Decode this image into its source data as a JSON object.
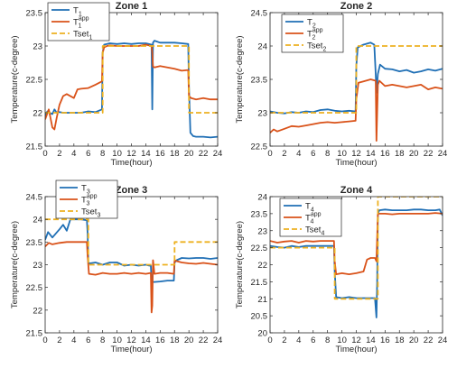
{
  "colors": {
    "T": "#1f6fb5",
    "Tapp": "#d95219",
    "Tset": "#edb120",
    "axis": "#262626",
    "background": "#ffffff"
  },
  "chart_data": [
    {
      "type": "line",
      "title": "Zone 1",
      "xlabel": "Time(hour)",
      "ylabel": "Temperature(c-degree)",
      "xlim": [
        0,
        24
      ],
      "ylim": [
        21.5,
        23.5
      ],
      "xticks": [
        "0",
        "2",
        "4",
        "6",
        "8",
        "10",
        "12",
        "14",
        "16",
        "18",
        "20",
        "22",
        "24"
      ],
      "yticks": [
        "21.5",
        "22",
        "22.5",
        "23",
        "23.5"
      ],
      "legend_position": "top-left",
      "series": [
        {
          "name": "T",
          "sub": "1",
          "sup": "",
          "key": "T",
          "x": [
            0,
            0.3,
            0.6,
            1,
            1.3,
            1.6,
            2,
            2.5,
            3,
            4,
            5,
            6,
            7,
            7.9,
            8,
            8.2,
            8.6,
            9,
            10,
            11,
            12,
            13,
            14,
            14.8,
            14.9,
            15,
            15.2,
            16,
            17,
            18,
            19,
            19.9,
            20,
            20.2,
            20.6,
            21,
            22,
            23,
            24
          ],
          "y": [
            21.95,
            22.02,
            22,
            21.98,
            22.05,
            22,
            22.01,
            22,
            22,
            22,
            22,
            22.02,
            22.01,
            22.05,
            22.9,
            23.02,
            23.03,
            23.04,
            23.03,
            23.04,
            23.03,
            23.04,
            23.04,
            23.02,
            22.05,
            23.05,
            23.08,
            23.05,
            23.05,
            23.05,
            23.04,
            23.03,
            22.4,
            21.7,
            21.65,
            21.64,
            21.64,
            21.63,
            21.64
          ]
        },
        {
          "name": "T",
          "sub": "1",
          "sup": "app",
          "key": "Tapp",
          "x": [
            0,
            0.5,
            1,
            1.3,
            1.6,
            2,
            2.5,
            3,
            4,
            4.5,
            5,
            6,
            7,
            7.9,
            8,
            8.2,
            8.6,
            9,
            10,
            11,
            12,
            13,
            14,
            14.8,
            14.9,
            15,
            15.2,
            16,
            17,
            18,
            19,
            19.9,
            20,
            20.3,
            21,
            22,
            23,
            24
          ],
          "y": [
            21.9,
            22.05,
            21.78,
            21.75,
            21.92,
            22.12,
            22.25,
            22.28,
            22.22,
            22.35,
            22.36,
            22.37,
            22.42,
            22.47,
            22.9,
            22.98,
            23.0,
            23.01,
            23.0,
            23.0,
            23.0,
            23.0,
            23.02,
            23.0,
            22.9,
            22.69,
            22.68,
            22.7,
            22.68,
            22.66,
            22.63,
            22.64,
            22.25,
            22.22,
            22.2,
            22.22,
            22.2,
            22.2
          ]
        },
        {
          "name": "Tset",
          "sub": "1",
          "sup": "",
          "key": "Tset",
          "dashed": true,
          "x": [
            0,
            8,
            8,
            20,
            20,
            24
          ],
          "y": [
            22,
            22,
            23,
            23,
            22,
            22
          ]
        }
      ]
    },
    {
      "type": "line",
      "title": "Zone 2",
      "xlabel": "Time(hour)",
      "ylabel": "Temperature(c-degree)",
      "xlim": [
        0,
        24
      ],
      "ylim": [
        22.5,
        24.5
      ],
      "xticks": [
        "0",
        "2",
        "4",
        "6",
        "8",
        "10",
        "12",
        "14",
        "16",
        "18",
        "20",
        "22",
        "24"
      ],
      "yticks": [
        "22.5",
        "23",
        "23.5",
        "24",
        "24.5"
      ],
      "legend_position": "top-left",
      "series": [
        {
          "name": "T",
          "sub": "2",
          "sup": "",
          "key": "T",
          "x": [
            0,
            1,
            2,
            3,
            4,
            5,
            6,
            7,
            8,
            9,
            10,
            11,
            11.9,
            12,
            12.2,
            12.6,
            13,
            14,
            14.5,
            14.7,
            14.8,
            15,
            15.3,
            16,
            17,
            18,
            19,
            20,
            21,
            22,
            23,
            24
          ],
          "y": [
            23.02,
            23.0,
            22.99,
            23.01,
            23.0,
            23.02,
            23.01,
            23.04,
            23.05,
            23.03,
            23.02,
            23.03,
            23.02,
            23.7,
            23.98,
            24.0,
            24.02,
            24.05,
            24.02,
            23.58,
            23.3,
            23.58,
            23.72,
            23.66,
            23.65,
            23.62,
            23.64,
            23.6,
            23.62,
            23.65,
            23.63,
            23.66
          ]
        },
        {
          "name": "T",
          "sub": "2",
          "sup": "app",
          "key": "Tapp",
          "x": [
            0,
            0.5,
            1,
            2,
            3,
            4,
            5,
            6,
            7,
            8,
            9,
            10,
            11,
            11.9,
            12,
            12.3,
            13,
            14,
            14.7,
            14.8,
            15,
            15.2,
            16,
            17,
            18,
            19,
            20,
            21,
            22,
            23,
            24
          ],
          "y": [
            22.7,
            22.75,
            22.72,
            22.76,
            22.8,
            22.79,
            22.81,
            22.83,
            22.85,
            22.86,
            22.85,
            22.86,
            22.87,
            22.88,
            23.2,
            23.45,
            23.47,
            23.5,
            23.48,
            22.58,
            23.42,
            23.48,
            23.4,
            23.42,
            23.4,
            23.38,
            23.4,
            23.42,
            23.35,
            23.38,
            23.36
          ]
        },
        {
          "name": "Tset",
          "sub": "2",
          "sup": "",
          "key": "Tset",
          "dashed": true,
          "x": [
            0,
            12,
            12,
            24
          ],
          "y": [
            23,
            23,
            24,
            24
          ]
        }
      ]
    },
    {
      "type": "line",
      "title": "Zone 3",
      "xlabel": "Time(hour)",
      "ylabel": "Temperature(c-degree)",
      "xlim": [
        0,
        24
      ],
      "ylim": [
        21.5,
        24.5
      ],
      "xticks": [
        "0",
        "2",
        "4",
        "6",
        "8",
        "10",
        "12",
        "14",
        "16",
        "18",
        "20",
        "22",
        "24"
      ],
      "yticks": [
        "21.5",
        "22",
        "22.5",
        "23",
        "23.5",
        "24",
        "24.5"
      ],
      "legend_position": "top-left",
      "series": [
        {
          "name": "T",
          "sub": "3",
          "sup": "",
          "key": "T",
          "x": [
            0,
            0.4,
            1,
            2,
            2.5,
            3,
            3.5,
            4,
            5,
            5.8,
            5.9,
            6,
            6.2,
            7,
            8,
            9,
            10,
            11,
            12,
            13,
            14,
            14.5,
            14.7,
            14.8,
            15,
            15.2,
            16,
            17,
            17.9,
            18,
            18.3,
            19,
            20,
            21,
            22,
            23,
            24
          ],
          "y": [
            23.55,
            23.72,
            23.6,
            23.78,
            23.88,
            23.75,
            24.0,
            24.0,
            24.0,
            23.98,
            23.7,
            23.05,
            23.03,
            23.05,
            23.0,
            23.05,
            23.05,
            22.98,
            23.0,
            22.98,
            23.0,
            22.98,
            22.98,
            22.65,
            22.62,
            22.62,
            22.63,
            22.65,
            22.65,
            23.05,
            23.1,
            23.15,
            23.14,
            23.15,
            23.15,
            23.13,
            23.15
          ]
        },
        {
          "name": "T",
          "sub": "3",
          "sup": "app",
          "key": "Tapp",
          "x": [
            0,
            0.5,
            1,
            2,
            3,
            4,
            5,
            5.8,
            5.9,
            6.1,
            7,
            8,
            9,
            10,
            11,
            12,
            13,
            14,
            14.7,
            14.8,
            14.9,
            15,
            15.2,
            16,
            17,
            17.9,
            18,
            18.3,
            19,
            20,
            21,
            22,
            23,
            24
          ],
          "y": [
            23.4,
            23.48,
            23.45,
            23.48,
            23.5,
            23.5,
            23.5,
            23.5,
            23.2,
            22.8,
            22.78,
            22.82,
            22.8,
            22.8,
            22.82,
            22.8,
            22.82,
            22.8,
            22.82,
            21.95,
            22.1,
            23.1,
            22.8,
            22.82,
            22.82,
            22.8,
            23.1,
            23.08,
            23.05,
            23.03,
            23.02,
            23.04,
            23.02,
            23.0
          ]
        },
        {
          "name": "Tset",
          "sub": "3",
          "sup": "",
          "key": "Tset",
          "dashed": true,
          "x": [
            0,
            6,
            6,
            18,
            18,
            24
          ],
          "y": [
            24,
            24,
            23,
            23,
            23.5,
            23.5
          ]
        }
      ]
    },
    {
      "type": "line",
      "title": "Zone 4",
      "xlabel": "Time(hour)",
      "ylabel": "Temperature(c-degree)",
      "xlim": [
        0,
        24
      ],
      "ylim": [
        20,
        24
      ],
      "xticks": [
        "0",
        "2",
        "4",
        "6",
        "8",
        "10",
        "12",
        "14",
        "16",
        "18",
        "20",
        "22",
        "24"
      ],
      "yticks": [
        "20",
        "20.5",
        "21",
        "21.5",
        "22",
        "22.5",
        "23",
        "23.5",
        "24"
      ],
      "legend_position": "top-left",
      "series": [
        {
          "name": "T",
          "sub": "4",
          "sup": "",
          "key": "T",
          "x": [
            0,
            1,
            2,
            3,
            4,
            5,
            6,
            7,
            8,
            8.9,
            9,
            9.2,
            10,
            11,
            12,
            13,
            14,
            14.6,
            14.8,
            14.9,
            15,
            15.2,
            16,
            17,
            18,
            19,
            20,
            21,
            22,
            23,
            23.6,
            24
          ],
          "y": [
            22.55,
            22.52,
            22.5,
            22.55,
            22.52,
            22.55,
            22.55,
            22.55,
            22.55,
            22.55,
            21.8,
            21.05,
            21.02,
            21.05,
            21.02,
            21.02,
            21.02,
            21.02,
            20.45,
            21.5,
            23.5,
            23.6,
            23.62,
            23.6,
            23.6,
            23.6,
            23.62,
            23.62,
            23.6,
            23.6,
            23.62,
            23.45
          ]
        },
        {
          "name": "T",
          "sub": "4",
          "sup": "app",
          "key": "Tapp",
          "x": [
            0,
            1,
            2,
            3,
            4,
            5,
            6,
            7,
            8,
            8.9,
            9,
            9.2,
            10,
            11,
            12,
            13,
            13.5,
            14,
            14.6,
            14.8,
            15,
            15.2,
            16,
            17,
            18,
            19,
            20,
            21,
            22,
            23,
            24
          ],
          "y": [
            22.7,
            22.65,
            22.68,
            22.7,
            22.65,
            22.7,
            22.68,
            22.7,
            22.7,
            22.7,
            22.1,
            21.72,
            21.75,
            21.72,
            21.75,
            21.8,
            22.15,
            22.2,
            22.2,
            22.1,
            23.5,
            23.5,
            23.5,
            23.48,
            23.5,
            23.5,
            23.5,
            23.5,
            23.5,
            23.52,
            23.5
          ]
        },
        {
          "name": "Tset",
          "sub": "4",
          "sup": "",
          "key": "Tset",
          "dashed": true,
          "x": [
            0,
            9,
            9,
            15,
            15,
            24
          ],
          "y": [
            22.5,
            22.5,
            21,
            21,
            24,
            24
          ]
        }
      ]
    }
  ]
}
